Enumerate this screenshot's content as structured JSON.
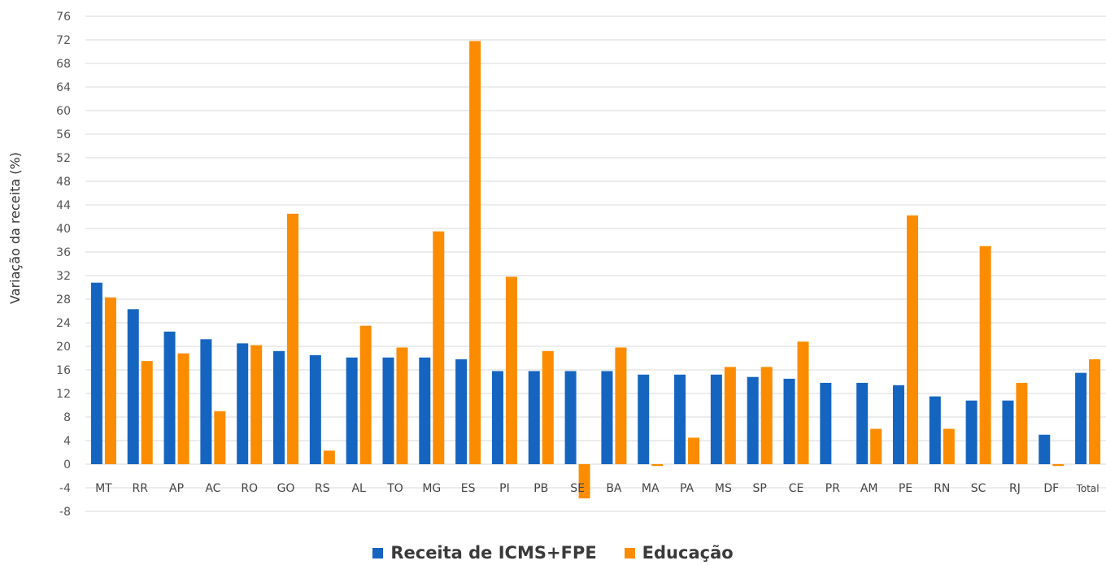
{
  "chart_data": {
    "type": "bar",
    "title": "",
    "xlabel": "",
    "ylabel": "Variação da receita (%)",
    "ylim": [
      -8,
      76
    ],
    "yticks": [
      -8,
      -4,
      0,
      4,
      8,
      12,
      16,
      20,
      24,
      28,
      32,
      36,
      40,
      44,
      48,
      52,
      56,
      60,
      64,
      68,
      72,
      76
    ],
    "grid": true,
    "legend_position": "bottom",
    "categories": [
      "MT",
      "RR",
      "AP",
      "AC",
      "RO",
      "GO",
      "RS",
      "AL",
      "TO",
      "MG",
      "ES",
      "PI",
      "PB",
      "SE",
      "BA",
      "MA",
      "PA",
      "MS",
      "SP",
      "CE",
      "PR",
      "AM",
      "PE",
      "RN",
      "SC",
      "RJ",
      "DF",
      "Total"
    ],
    "series": [
      {
        "name": "Receita de ICMS+FPE",
        "color": "#1565c0",
        "values": [
          30.8,
          26.3,
          22.5,
          21.2,
          20.5,
          19.2,
          18.5,
          18.1,
          18.1,
          18.1,
          17.8,
          15.8,
          15.8,
          15.8,
          15.8,
          15.2,
          15.2,
          15.2,
          14.8,
          14.5,
          13.8,
          13.8,
          13.4,
          11.5,
          10.8,
          10.8,
          5.0,
          15.5
        ]
      },
      {
        "name": "Educação",
        "color": "#fb8c00",
        "values": [
          28.3,
          17.5,
          18.8,
          9.0,
          20.2,
          42.5,
          2.3,
          23.5,
          19.8,
          39.5,
          71.8,
          31.8,
          19.2,
          -5.8,
          19.8,
          -0.3,
          4.5,
          16.5,
          16.5,
          20.8,
          0.0,
          6.0,
          42.2,
          6.0,
          37.0,
          13.8,
          -0.3,
          17.8
        ]
      }
    ]
  }
}
